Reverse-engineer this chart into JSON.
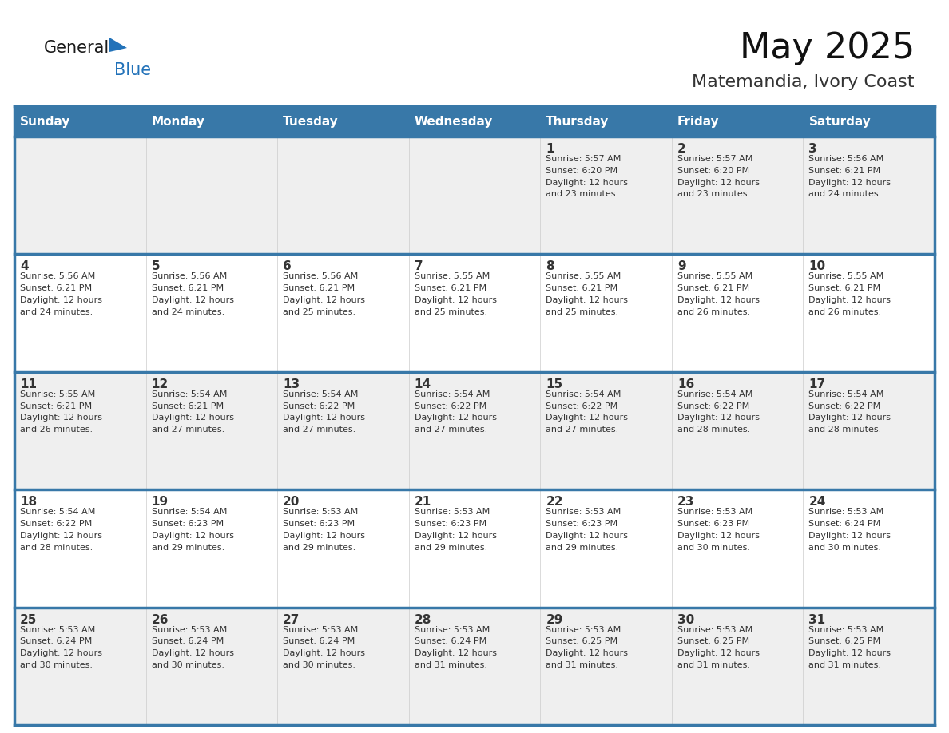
{
  "title": "May 2025",
  "subtitle": "Matemandia, Ivory Coast",
  "header_bg": "#3878a8",
  "header_text": "#ffffff",
  "row_bg_light": "#efefef",
  "row_bg_white": "#ffffff",
  "separator_color": "#3878a8",
  "text_color": "#333333",
  "cell_border_color": "#cccccc",
  "days_of_week": [
    "Sunday",
    "Monday",
    "Tuesday",
    "Wednesday",
    "Thursday",
    "Friday",
    "Saturday"
  ],
  "weeks": [
    [
      {
        "day": "",
        "info": ""
      },
      {
        "day": "",
        "info": ""
      },
      {
        "day": "",
        "info": ""
      },
      {
        "day": "",
        "info": ""
      },
      {
        "day": "1",
        "info": "Sunrise: 5:57 AM\nSunset: 6:20 PM\nDaylight: 12 hours\nand 23 minutes."
      },
      {
        "day": "2",
        "info": "Sunrise: 5:57 AM\nSunset: 6:20 PM\nDaylight: 12 hours\nand 23 minutes."
      },
      {
        "day": "3",
        "info": "Sunrise: 5:56 AM\nSunset: 6:21 PM\nDaylight: 12 hours\nand 24 minutes."
      }
    ],
    [
      {
        "day": "4",
        "info": "Sunrise: 5:56 AM\nSunset: 6:21 PM\nDaylight: 12 hours\nand 24 minutes."
      },
      {
        "day": "5",
        "info": "Sunrise: 5:56 AM\nSunset: 6:21 PM\nDaylight: 12 hours\nand 24 minutes."
      },
      {
        "day": "6",
        "info": "Sunrise: 5:56 AM\nSunset: 6:21 PM\nDaylight: 12 hours\nand 25 minutes."
      },
      {
        "day": "7",
        "info": "Sunrise: 5:55 AM\nSunset: 6:21 PM\nDaylight: 12 hours\nand 25 minutes."
      },
      {
        "day": "8",
        "info": "Sunrise: 5:55 AM\nSunset: 6:21 PM\nDaylight: 12 hours\nand 25 minutes."
      },
      {
        "day": "9",
        "info": "Sunrise: 5:55 AM\nSunset: 6:21 PM\nDaylight: 12 hours\nand 26 minutes."
      },
      {
        "day": "10",
        "info": "Sunrise: 5:55 AM\nSunset: 6:21 PM\nDaylight: 12 hours\nand 26 minutes."
      }
    ],
    [
      {
        "day": "11",
        "info": "Sunrise: 5:55 AM\nSunset: 6:21 PM\nDaylight: 12 hours\nand 26 minutes."
      },
      {
        "day": "12",
        "info": "Sunrise: 5:54 AM\nSunset: 6:21 PM\nDaylight: 12 hours\nand 27 minutes."
      },
      {
        "day": "13",
        "info": "Sunrise: 5:54 AM\nSunset: 6:22 PM\nDaylight: 12 hours\nand 27 minutes."
      },
      {
        "day": "14",
        "info": "Sunrise: 5:54 AM\nSunset: 6:22 PM\nDaylight: 12 hours\nand 27 minutes."
      },
      {
        "day": "15",
        "info": "Sunrise: 5:54 AM\nSunset: 6:22 PM\nDaylight: 12 hours\nand 27 minutes."
      },
      {
        "day": "16",
        "info": "Sunrise: 5:54 AM\nSunset: 6:22 PM\nDaylight: 12 hours\nand 28 minutes."
      },
      {
        "day": "17",
        "info": "Sunrise: 5:54 AM\nSunset: 6:22 PM\nDaylight: 12 hours\nand 28 minutes."
      }
    ],
    [
      {
        "day": "18",
        "info": "Sunrise: 5:54 AM\nSunset: 6:22 PM\nDaylight: 12 hours\nand 28 minutes."
      },
      {
        "day": "19",
        "info": "Sunrise: 5:54 AM\nSunset: 6:23 PM\nDaylight: 12 hours\nand 29 minutes."
      },
      {
        "day": "20",
        "info": "Sunrise: 5:53 AM\nSunset: 6:23 PM\nDaylight: 12 hours\nand 29 minutes."
      },
      {
        "day": "21",
        "info": "Sunrise: 5:53 AM\nSunset: 6:23 PM\nDaylight: 12 hours\nand 29 minutes."
      },
      {
        "day": "22",
        "info": "Sunrise: 5:53 AM\nSunset: 6:23 PM\nDaylight: 12 hours\nand 29 minutes."
      },
      {
        "day": "23",
        "info": "Sunrise: 5:53 AM\nSunset: 6:23 PM\nDaylight: 12 hours\nand 30 minutes."
      },
      {
        "day": "24",
        "info": "Sunrise: 5:53 AM\nSunset: 6:24 PM\nDaylight: 12 hours\nand 30 minutes."
      }
    ],
    [
      {
        "day": "25",
        "info": "Sunrise: 5:53 AM\nSunset: 6:24 PM\nDaylight: 12 hours\nand 30 minutes."
      },
      {
        "day": "26",
        "info": "Sunrise: 5:53 AM\nSunset: 6:24 PM\nDaylight: 12 hours\nand 30 minutes."
      },
      {
        "day": "27",
        "info": "Sunrise: 5:53 AM\nSunset: 6:24 PM\nDaylight: 12 hours\nand 30 minutes."
      },
      {
        "day": "28",
        "info": "Sunrise: 5:53 AM\nSunset: 6:24 PM\nDaylight: 12 hours\nand 31 minutes."
      },
      {
        "day": "29",
        "info": "Sunrise: 5:53 AM\nSunset: 6:25 PM\nDaylight: 12 hours\nand 31 minutes."
      },
      {
        "day": "30",
        "info": "Sunrise: 5:53 AM\nSunset: 6:25 PM\nDaylight: 12 hours\nand 31 minutes."
      },
      {
        "day": "31",
        "info": "Sunrise: 5:53 AM\nSunset: 6:25 PM\nDaylight: 12 hours\nand 31 minutes."
      }
    ]
  ],
  "logo_general_color": "#1a1a1a",
  "logo_blue_color": "#2272b9",
  "logo_triangle_color": "#2272b9",
  "title_fontsize": 32,
  "subtitle_fontsize": 16,
  "header_fontsize": 11,
  "day_num_fontsize": 11,
  "info_fontsize": 8,
  "logo_fontsize": 15
}
